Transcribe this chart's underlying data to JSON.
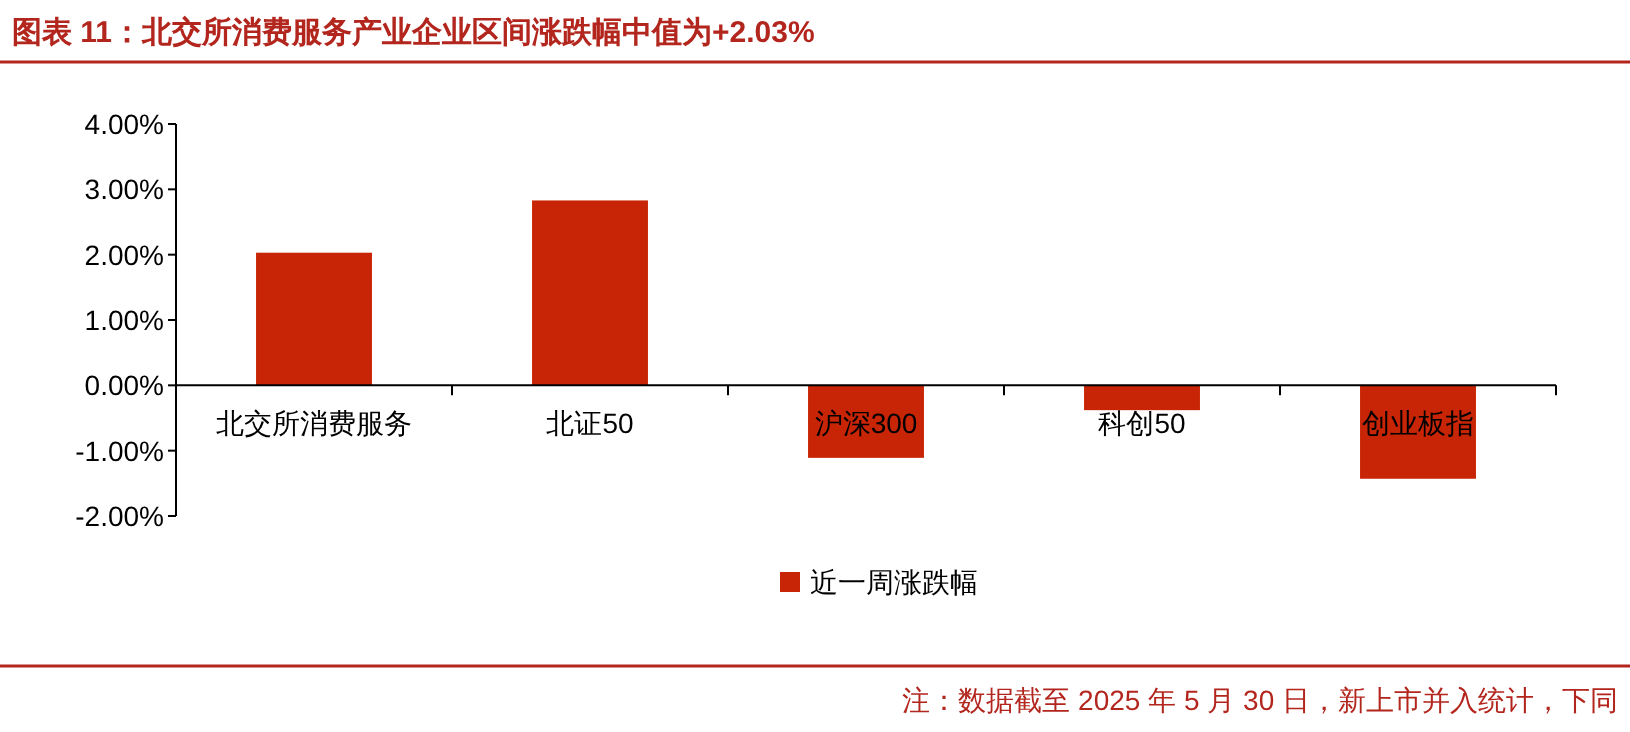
{
  "chart_data": {
    "type": "bar",
    "title": "图表 11：北交所消费服务产业企业区间涨跌幅中值为+2.03%",
    "categories": [
      "北交所消费服务",
      "北证50",
      "沪深300",
      "科创50",
      "创业板指"
    ],
    "series": [
      {
        "name": "近一周涨跌幅",
        "color": "#c82506",
        "values": [
          2.03,
          2.83,
          -1.11,
          -0.38,
          -1.43
        ]
      }
    ],
    "ylim": [
      -2,
      4
    ],
    "yticks": [
      {
        "value": -2,
        "label": "-2.00%"
      },
      {
        "value": -1,
        "label": "-1.00%"
      },
      {
        "value": 0,
        "label": "0.00%"
      },
      {
        "value": 1,
        "label": "1.00%"
      },
      {
        "value": 2,
        "label": "2.00%"
      },
      {
        "value": 3,
        "label": "3.00%"
      },
      {
        "value": 4,
        "label": "4.00%"
      }
    ],
    "legend": "bottom",
    "annotations": [
      "注：数据截至 2025 年 5 月 30 日，新上市并入统计，下同"
    ]
  }
}
